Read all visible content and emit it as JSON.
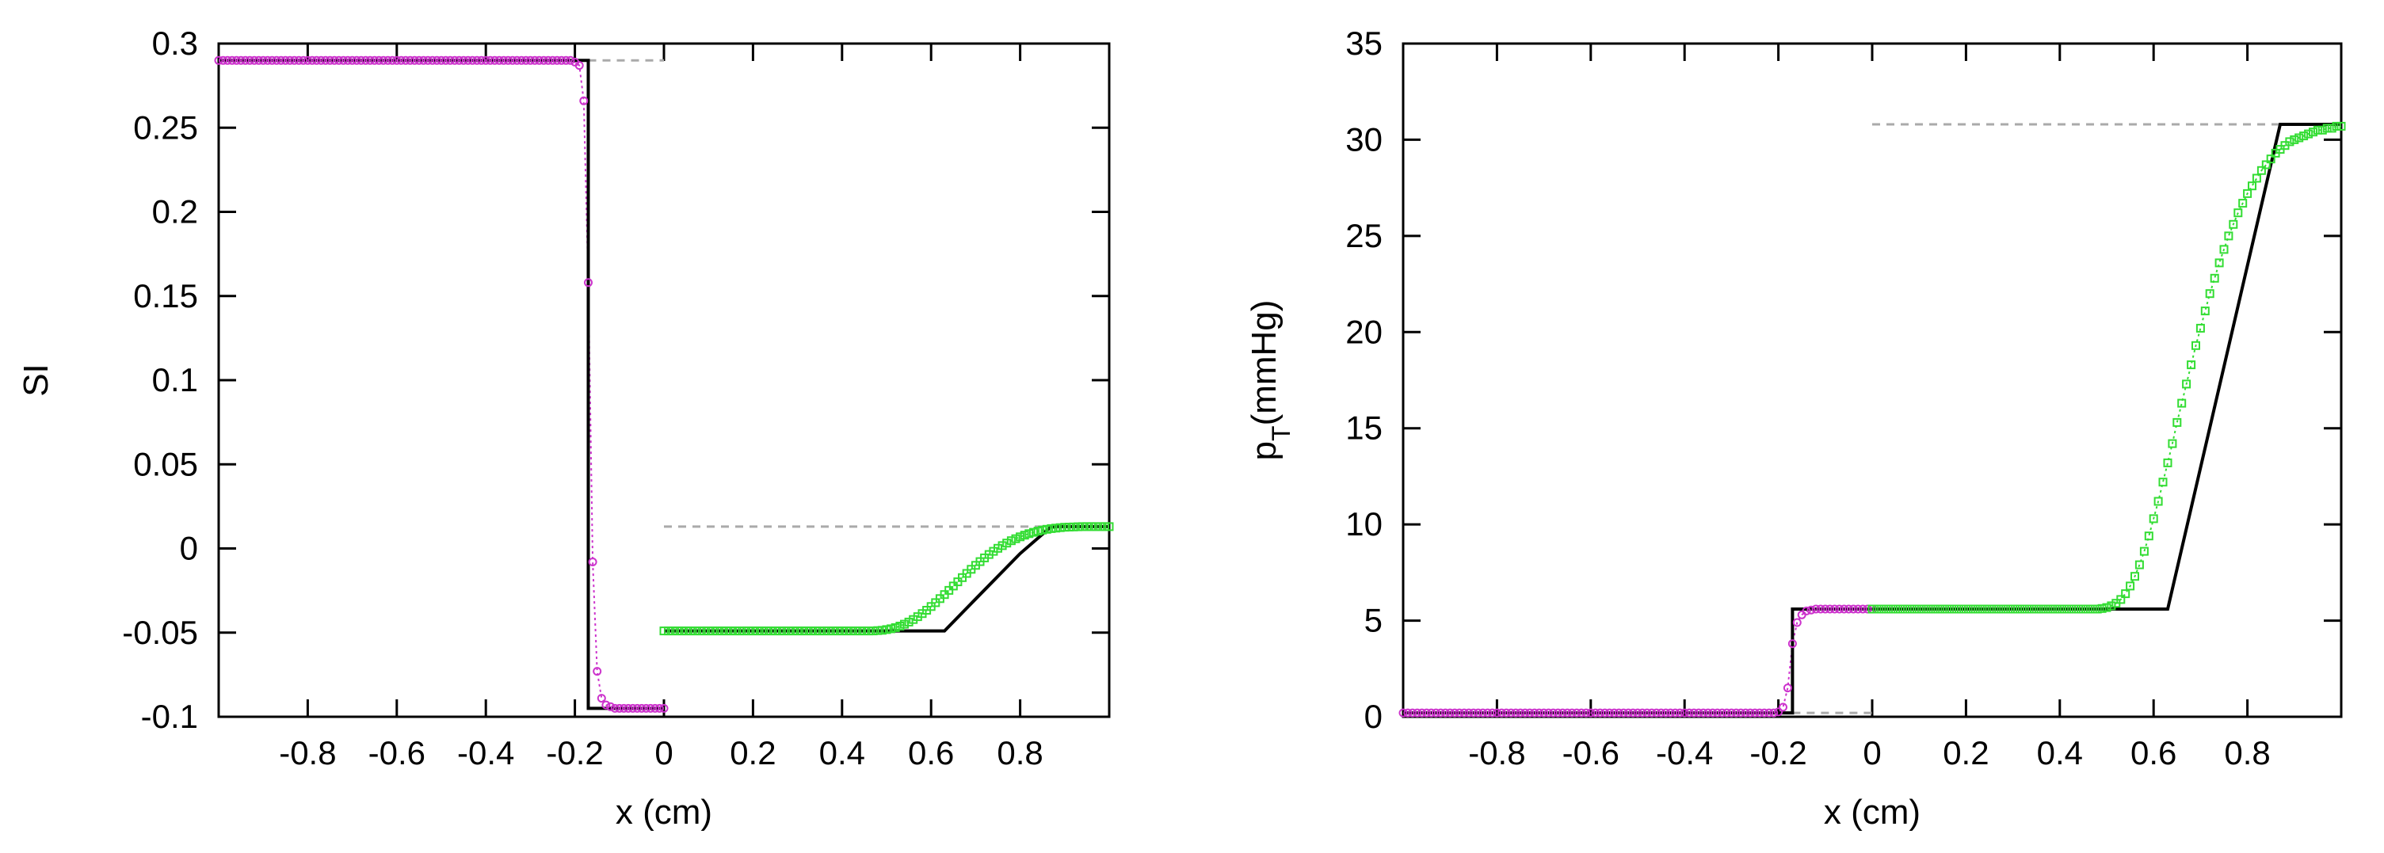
{
  "chart_data": [
    {
      "type": "line",
      "xlabel": "x (cm)",
      "ylabel": "SI",
      "xlim": [
        -1,
        1
      ],
      "ylim": [
        -0.1,
        0.3
      ],
      "xticks": [
        -0.8,
        -0.6,
        -0.4,
        -0.2,
        0,
        0.2,
        0.4,
        0.6,
        0.8
      ],
      "xtick_labels": [
        "-0.8",
        "-0.6",
        "-0.4",
        "-0.2",
        "0",
        "0.2",
        "0.4",
        "0.6",
        "0.8"
      ],
      "yticks": [
        -0.1,
        -0.05,
        0,
        0.05,
        0.1,
        0.15,
        0.2,
        0.25,
        0.3
      ],
      "ytick_labels": [
        "-0.1",
        "-0.05",
        "0",
        "0.05",
        "0.1",
        "0.15",
        "0.2",
        "0.25",
        "0.3"
      ],
      "colors": {
        "left_markers": "#cc33cc",
        "right_markers": "#33dd33",
        "exact": "#000000",
        "reference": "#aaaaaa"
      },
      "exact_solution": {
        "left": [
          [
            -1,
            0.29
          ],
          [
            -0.17,
            0.29
          ],
          [
            -0.17,
            -0.095
          ],
          [
            0,
            -0.095
          ]
        ],
        "right": [
          [
            0,
            -0.049
          ],
          [
            0.63,
            -0.049
          ],
          [
            0.7,
            -0.03
          ],
          [
            0.8,
            -0.003
          ],
          [
            0.87,
            0.013
          ],
          [
            1,
            0.013
          ]
        ]
      },
      "reference_lines": [
        [
          [
            -0.17,
            0.29
          ],
          [
            0,
            0.29
          ]
        ],
        [
          [
            0,
            0.013
          ],
          [
            1,
            0.013
          ]
        ]
      ],
      "markers_left": {
        "symbol": "circle",
        "x": [
          -1,
          -0.99,
          -0.98,
          -0.97,
          -0.96,
          -0.95,
          -0.94,
          -0.93,
          -0.92,
          -0.91,
          -0.9,
          -0.89,
          -0.88,
          -0.87,
          -0.86,
          -0.85,
          -0.84,
          -0.83,
          -0.82,
          -0.81,
          -0.8,
          -0.79,
          -0.78,
          -0.77,
          -0.76,
          -0.75,
          -0.74,
          -0.73,
          -0.72,
          -0.71,
          -0.7,
          -0.69,
          -0.68,
          -0.67,
          -0.66,
          -0.65,
          -0.64,
          -0.63,
          -0.62,
          -0.61,
          -0.6,
          -0.59,
          -0.58,
          -0.57,
          -0.56,
          -0.55,
          -0.54,
          -0.53,
          -0.52,
          -0.51,
          -0.5,
          -0.49,
          -0.48,
          -0.47,
          -0.46,
          -0.45,
          -0.44,
          -0.43,
          -0.42,
          -0.41,
          -0.4,
          -0.39,
          -0.38,
          -0.37,
          -0.36,
          -0.35,
          -0.34,
          -0.33,
          -0.32,
          -0.31,
          -0.3,
          -0.29,
          -0.28,
          -0.27,
          -0.26,
          -0.25,
          -0.24,
          -0.23,
          -0.22,
          -0.21,
          -0.2,
          -0.19,
          -0.18,
          -0.17,
          -0.16,
          -0.15,
          -0.14,
          -0.13,
          -0.12,
          -0.11,
          -0.1,
          -0.09,
          -0.08,
          -0.07,
          -0.06,
          -0.05,
          -0.04,
          -0.03,
          -0.02,
          -0.01,
          0
        ],
        "y": [
          0.29,
          0.29,
          0.29,
          0.29,
          0.29,
          0.29,
          0.29,
          0.29,
          0.29,
          0.29,
          0.29,
          0.29,
          0.29,
          0.29,
          0.29,
          0.29,
          0.29,
          0.29,
          0.29,
          0.29,
          0.29,
          0.29,
          0.29,
          0.29,
          0.29,
          0.29,
          0.29,
          0.29,
          0.29,
          0.29,
          0.29,
          0.29,
          0.29,
          0.29,
          0.29,
          0.29,
          0.29,
          0.29,
          0.29,
          0.29,
          0.29,
          0.29,
          0.29,
          0.29,
          0.29,
          0.29,
          0.29,
          0.29,
          0.29,
          0.29,
          0.29,
          0.29,
          0.29,
          0.29,
          0.29,
          0.29,
          0.29,
          0.29,
          0.29,
          0.29,
          0.29,
          0.29,
          0.29,
          0.29,
          0.29,
          0.29,
          0.29,
          0.29,
          0.29,
          0.29,
          0.29,
          0.29,
          0.29,
          0.29,
          0.29,
          0.29,
          0.29,
          0.29,
          0.29,
          0.29,
          0.289,
          0.287,
          0.266,
          0.158,
          -0.008,
          -0.073,
          -0.089,
          -0.093,
          -0.094,
          -0.095,
          -0.095,
          -0.095,
          -0.095,
          -0.095,
          -0.095,
          -0.095,
          -0.095,
          -0.095,
          -0.095,
          -0.095,
          -0.095
        ]
      },
      "markers_right": {
        "symbol": "square",
        "x": [
          0,
          0.01,
          0.02,
          0.03,
          0.04,
          0.05,
          0.06,
          0.07,
          0.08,
          0.09,
          0.1,
          0.11,
          0.12,
          0.13,
          0.14,
          0.15,
          0.16,
          0.17,
          0.18,
          0.19,
          0.2,
          0.21,
          0.22,
          0.23,
          0.24,
          0.25,
          0.26,
          0.27,
          0.28,
          0.29,
          0.3,
          0.31,
          0.32,
          0.33,
          0.34,
          0.35,
          0.36,
          0.37,
          0.38,
          0.39,
          0.4,
          0.41,
          0.42,
          0.43,
          0.44,
          0.45,
          0.46,
          0.47,
          0.48,
          0.49,
          0.5,
          0.51,
          0.52,
          0.53,
          0.54,
          0.55,
          0.56,
          0.57,
          0.58,
          0.59,
          0.6,
          0.61,
          0.62,
          0.63,
          0.64,
          0.65,
          0.66,
          0.67,
          0.68,
          0.69,
          0.7,
          0.71,
          0.72,
          0.73,
          0.74,
          0.75,
          0.76,
          0.77,
          0.78,
          0.79,
          0.8,
          0.81,
          0.82,
          0.83,
          0.84,
          0.85,
          0.86,
          0.87,
          0.88,
          0.89,
          0.9,
          0.91,
          0.92,
          0.93,
          0.94,
          0.95,
          0.96,
          0.97,
          0.98,
          0.99,
          1
        ],
        "y": [
          -0.049,
          -0.049,
          -0.049,
          -0.049,
          -0.049,
          -0.049,
          -0.049,
          -0.049,
          -0.049,
          -0.049,
          -0.049,
          -0.049,
          -0.049,
          -0.049,
          -0.049,
          -0.049,
          -0.049,
          -0.049,
          -0.049,
          -0.049,
          -0.049,
          -0.049,
          -0.049,
          -0.049,
          -0.049,
          -0.049,
          -0.049,
          -0.049,
          -0.049,
          -0.049,
          -0.049,
          -0.049,
          -0.049,
          -0.049,
          -0.049,
          -0.049,
          -0.049,
          -0.049,
          -0.049,
          -0.049,
          -0.049,
          -0.049,
          -0.049,
          -0.049,
          -0.049,
          -0.049,
          -0.049,
          -0.049,
          -0.0488,
          -0.0486,
          -0.0482,
          -0.0477,
          -0.047,
          -0.0461,
          -0.045,
          -0.0437,
          -0.0422,
          -0.0405,
          -0.0387,
          -0.0367,
          -0.0345,
          -0.0322,
          -0.0298,
          -0.0274,
          -0.0249,
          -0.0223,
          -0.0198,
          -0.0173,
          -0.0148,
          -0.0124,
          -0.01,
          -0.0078,
          -0.0056,
          -0.0036,
          -0.0017,
          0.0001,
          0.0017,
          0.0032,
          0.0046,
          0.0058,
          0.0069,
          0.0079,
          0.0088,
          0.0096,
          0.0103,
          0.0109,
          0.0114,
          0.0118,
          0.0121,
          0.0124,
          0.0126,
          0.0127,
          0.0128,
          0.0129,
          0.013,
          0.013,
          0.013,
          0.013,
          0.013,
          0.013,
          0.013
        ]
      }
    },
    {
      "type": "line",
      "xlabel": "x (cm)",
      "ylabel_main": "p",
      "ylabel_sub": "T",
      "ylabel_unit": "(mmHg)",
      "xlim": [
        -1,
        1
      ],
      "ylim": [
        0,
        35
      ],
      "xticks": [
        -0.8,
        -0.6,
        -0.4,
        -0.2,
        0,
        0.2,
        0.4,
        0.6,
        0.8
      ],
      "xtick_labels": [
        "-0.8",
        "-0.6",
        "-0.4",
        "-0.2",
        "0",
        "0.2",
        "0.4",
        "0.6",
        "0.8"
      ],
      "yticks": [
        0,
        5,
        10,
        15,
        20,
        25,
        30,
        35
      ],
      "ytick_labels": [
        "0",
        "5",
        "10",
        "15",
        "20",
        "25",
        "30",
        "35"
      ],
      "colors": {
        "left_markers": "#cc33cc",
        "right_markers": "#33dd33",
        "exact": "#000000",
        "reference": "#aaaaaa"
      },
      "exact_solution": {
        "left": [
          [
            -1,
            0.2
          ],
          [
            -0.17,
            0.2
          ],
          [
            -0.17,
            5.6
          ],
          [
            0,
            5.6
          ]
        ],
        "right": [
          [
            0,
            5.6
          ],
          [
            0.63,
            5.6
          ],
          [
            0.87,
            30.8
          ],
          [
            1,
            30.8
          ]
        ]
      },
      "reference_lines": [
        [
          [
            -0.17,
            0.2
          ],
          [
            0,
            0.2
          ]
        ],
        [
          [
            0,
            30.8
          ],
          [
            1,
            30.8
          ]
        ]
      ],
      "markers_left": {
        "symbol": "circle",
        "x": [
          -1,
          -0.99,
          -0.98,
          -0.97,
          -0.96,
          -0.95,
          -0.94,
          -0.93,
          -0.92,
          -0.91,
          -0.9,
          -0.89,
          -0.88,
          -0.87,
          -0.86,
          -0.85,
          -0.84,
          -0.83,
          -0.82,
          -0.81,
          -0.8,
          -0.79,
          -0.78,
          -0.77,
          -0.76,
          -0.75,
          -0.74,
          -0.73,
          -0.72,
          -0.71,
          -0.7,
          -0.69,
          -0.68,
          -0.67,
          -0.66,
          -0.65,
          -0.64,
          -0.63,
          -0.62,
          -0.61,
          -0.6,
          -0.59,
          -0.58,
          -0.57,
          -0.56,
          -0.55,
          -0.54,
          -0.53,
          -0.52,
          -0.51,
          -0.5,
          -0.49,
          -0.48,
          -0.47,
          -0.46,
          -0.45,
          -0.44,
          -0.43,
          -0.42,
          -0.41,
          -0.4,
          -0.39,
          -0.38,
          -0.37,
          -0.36,
          -0.35,
          -0.34,
          -0.33,
          -0.32,
          -0.31,
          -0.3,
          -0.29,
          -0.28,
          -0.27,
          -0.26,
          -0.25,
          -0.24,
          -0.23,
          -0.22,
          -0.21,
          -0.2,
          -0.19,
          -0.18,
          -0.17,
          -0.16,
          -0.15,
          -0.14,
          -0.13,
          -0.12,
          -0.11,
          -0.1,
          -0.09,
          -0.08,
          -0.07,
          -0.06,
          -0.05,
          -0.04,
          -0.03,
          -0.02,
          -0.01,
          0
        ],
        "y": [
          0.2,
          0.2,
          0.2,
          0.2,
          0.2,
          0.2,
          0.2,
          0.2,
          0.2,
          0.2,
          0.2,
          0.2,
          0.2,
          0.2,
          0.2,
          0.2,
          0.2,
          0.2,
          0.2,
          0.2,
          0.2,
          0.2,
          0.2,
          0.2,
          0.2,
          0.2,
          0.2,
          0.2,
          0.2,
          0.2,
          0.2,
          0.2,
          0.2,
          0.2,
          0.2,
          0.2,
          0.2,
          0.2,
          0.2,
          0.2,
          0.2,
          0.2,
          0.2,
          0.2,
          0.2,
          0.2,
          0.2,
          0.2,
          0.2,
          0.2,
          0.2,
          0.2,
          0.2,
          0.2,
          0.2,
          0.2,
          0.2,
          0.2,
          0.2,
          0.2,
          0.2,
          0.2,
          0.2,
          0.2,
          0.2,
          0.2,
          0.2,
          0.2,
          0.2,
          0.2,
          0.2,
          0.2,
          0.2,
          0.2,
          0.2,
          0.2,
          0.2,
          0.2,
          0.2,
          0.2,
          0.25,
          0.5,
          1.5,
          3.8,
          4.9,
          5.3,
          5.5,
          5.55,
          5.6,
          5.6,
          5.6,
          5.6,
          5.6,
          5.6,
          5.6,
          5.6,
          5.6,
          5.6,
          5.6,
          5.6,
          5.6
        ]
      },
      "markers_right": {
        "symbol": "square",
        "x": [
          0,
          0.01,
          0.02,
          0.03,
          0.04,
          0.05,
          0.06,
          0.07,
          0.08,
          0.09,
          0.1,
          0.11,
          0.12,
          0.13,
          0.14,
          0.15,
          0.16,
          0.17,
          0.18,
          0.19,
          0.2,
          0.21,
          0.22,
          0.23,
          0.24,
          0.25,
          0.26,
          0.27,
          0.28,
          0.29,
          0.3,
          0.31,
          0.32,
          0.33,
          0.34,
          0.35,
          0.36,
          0.37,
          0.38,
          0.39,
          0.4,
          0.41,
          0.42,
          0.43,
          0.44,
          0.45,
          0.46,
          0.47,
          0.48,
          0.49,
          0.5,
          0.51,
          0.52,
          0.53,
          0.54,
          0.55,
          0.56,
          0.57,
          0.58,
          0.59,
          0.6,
          0.61,
          0.62,
          0.63,
          0.64,
          0.65,
          0.66,
          0.67,
          0.68,
          0.69,
          0.7,
          0.71,
          0.72,
          0.73,
          0.74,
          0.75,
          0.76,
          0.77,
          0.78,
          0.79,
          0.8,
          0.81,
          0.82,
          0.83,
          0.84,
          0.85,
          0.86,
          0.87,
          0.88,
          0.89,
          0.9,
          0.91,
          0.92,
          0.93,
          0.94,
          0.95,
          0.96,
          0.97,
          0.98,
          0.99,
          1
        ],
        "y": [
          5.6,
          5.6,
          5.6,
          5.6,
          5.6,
          5.6,
          5.6,
          5.6,
          5.6,
          5.6,
          5.6,
          5.6,
          5.6,
          5.6,
          5.6,
          5.6,
          5.6,
          5.6,
          5.6,
          5.6,
          5.6,
          5.6,
          5.6,
          5.6,
          5.6,
          5.6,
          5.6,
          5.6,
          5.6,
          5.6,
          5.6,
          5.6,
          5.6,
          5.6,
          5.6,
          5.6,
          5.6,
          5.6,
          5.6,
          5.6,
          5.6,
          5.6,
          5.6,
          5.6,
          5.6,
          5.6,
          5.6,
          5.6,
          5.6,
          5.63,
          5.68,
          5.77,
          5.9,
          6.1,
          6.4,
          6.8,
          7.3,
          7.9,
          8.6,
          9.4,
          10.3,
          11.2,
          12.2,
          13.2,
          14.2,
          15.3,
          16.3,
          17.3,
          18.3,
          19.3,
          20.2,
          21.1,
          22,
          22.8,
          23.6,
          24.3,
          25,
          25.6,
          26.2,
          26.7,
          27.2,
          27.6,
          28,
          28.4,
          28.7,
          29,
          29.3,
          29.5,
          29.7,
          29.9,
          30,
          30.1,
          30.2,
          30.3,
          30.4,
          30.5,
          30.5,
          30.6,
          30.6,
          30.7,
          30.7
        ]
      }
    }
  ]
}
